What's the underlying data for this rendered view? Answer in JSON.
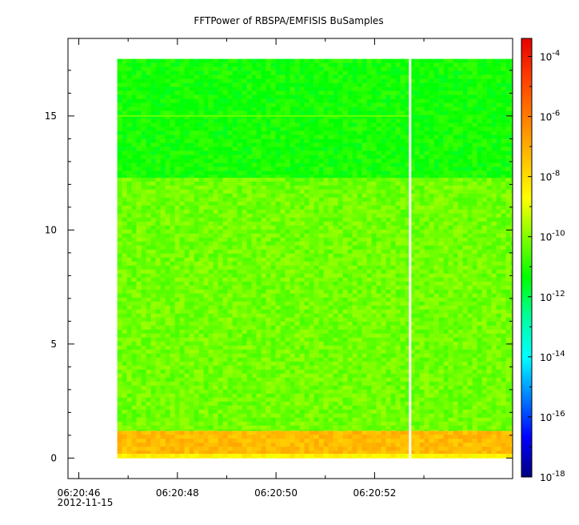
{
  "chart_data": {
    "type": "heatmap",
    "title": "FFTPower of RBSPA/EMFISIS  BuSamples",
    "xlabel": "",
    "ylabel": "",
    "x_ticks": [
      {
        "t": 46,
        "label": "06:20:46",
        "sublabel": "2012-11-15"
      },
      {
        "t": 48,
        "label": "06:20:48"
      },
      {
        "t": 50,
        "label": "06:20:50"
      },
      {
        "t": 52,
        "label": "06:20:52"
      }
    ],
    "x_minor_ticks": [
      47,
      49,
      51,
      53
    ],
    "xlim": [
      45.78,
      54.8
    ],
    "y_ticks": [
      0,
      5,
      10,
      15
    ],
    "ylim": [
      -0.9,
      18.4
    ],
    "colorbar": {
      "scale": "log",
      "range_exp": [
        -18,
        -3.4
      ],
      "tick_exponents": [
        -4,
        -6,
        -8,
        -10,
        -12,
        -14,
        -16,
        -18
      ],
      "colors": [
        "#00007f",
        "#0000ff",
        "#007fff",
        "#00ffff",
        "#00ff9f",
        "#00ff00",
        "#7fff00",
        "#ffff00",
        "#ffbf00",
        "#ff7f00",
        "#ff3f00",
        "#e60000"
      ]
    },
    "data_extent": {
      "t_start": 46.78,
      "t_end": 54.8,
      "f_min": 0,
      "f_max": 17.5
    },
    "gap": {
      "t": 52.72
    },
    "bands": [
      {
        "f_from": 0.0,
        "f_to": 0.2,
        "log_power": -8.5
      },
      {
        "f_from": 0.2,
        "f_to": 1.2,
        "log_power": -7.3
      },
      {
        "f_from": 1.2,
        "f_to": 12.3,
        "log_power": -10.2
      },
      {
        "f_from": 12.3,
        "f_to": 17.5,
        "log_power": -11.2
      }
    ],
    "line_feature": {
      "f": 15.0,
      "log_power": -10.3
    }
  }
}
